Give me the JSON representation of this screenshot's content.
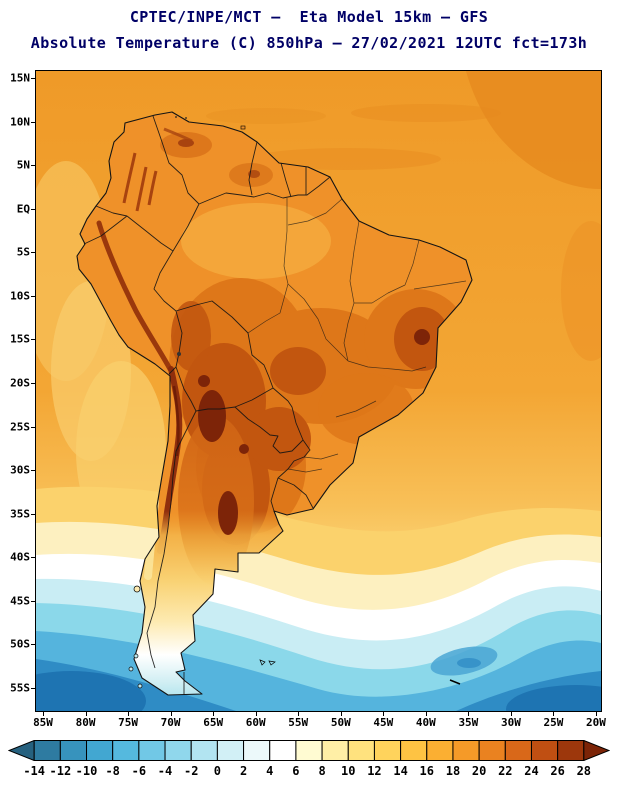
{
  "header": {
    "line1": "CPTEC/INPE/MCT –  Eta Model 15km – GFS",
    "line2": "Absolute Temperature (C) 850hPa – 27/02/2021 12UTC fct=173h"
  },
  "map": {
    "lat_labels": [
      "15N",
      "10N",
      "5N",
      "EQ",
      "5S",
      "10S",
      "15S",
      "20S",
      "25S",
      "30S",
      "35S",
      "40S",
      "45S",
      "50S",
      "55S"
    ],
    "lon_labels": [
      "85W",
      "80W",
      "75W",
      "70W",
      "65W",
      "60W",
      "55W",
      "50W",
      "45W",
      "40W",
      "35W",
      "30W",
      "25W",
      "20W"
    ]
  },
  "colorbar": {
    "tick_labels": [
      "-14",
      "-12",
      "-10",
      "-8",
      "-6",
      "-4",
      "-2",
      "0",
      "2",
      "4",
      "6",
      "8",
      "10",
      "12",
      "14",
      "16",
      "18",
      "20",
      "22",
      "24",
      "26",
      "28"
    ],
    "colors": [
      "#26617f",
      "#2e7ba1",
      "#3793bd",
      "#42a7d1",
      "#55b9de",
      "#71c8e6",
      "#90d7ec",
      "#b2e4f1",
      "#d2f0f6",
      "#ecf9fa",
      "#ffffff",
      "#fffbd2",
      "#ffefa6",
      "#ffe27e",
      "#ffd35c",
      "#fec343",
      "#fbaf32",
      "#f59a28",
      "#ea8220",
      "#d96819",
      "#c04f12",
      "#9d370c",
      "#7c2407"
    ]
  }
}
